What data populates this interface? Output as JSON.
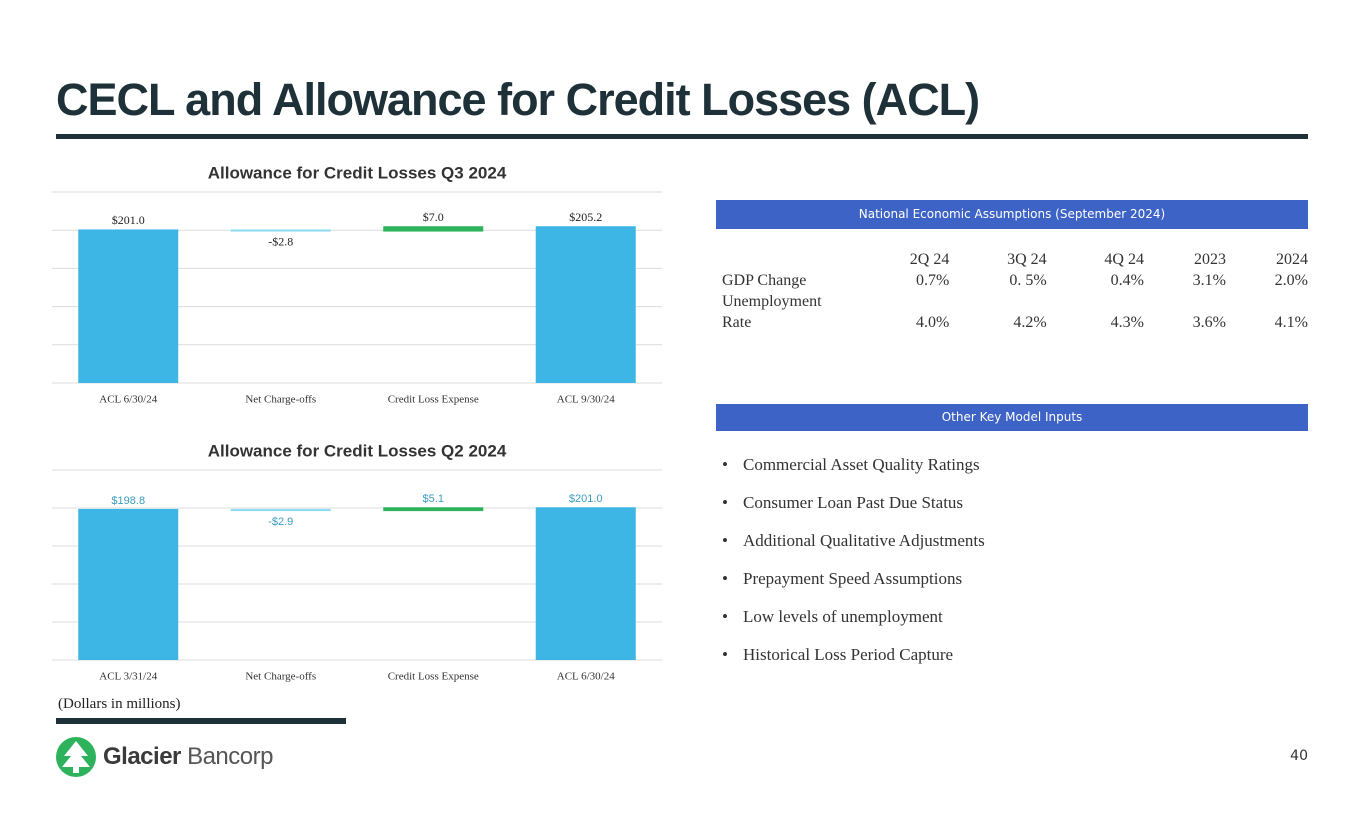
{
  "title": "CECL and Allowance for Credit Losses (ACL)",
  "chart_data": [
    {
      "type": "waterfall",
      "title": "Allowance for Credit Losses Q3 2024",
      "categories": [
        "ACL 6/30/24",
        "Net Charge-offs",
        "Credit Loss Expense",
        "ACL 9/30/24"
      ],
      "values": [
        201.0,
        -2.8,
        7.0,
        205.2
      ],
      "value_labels": [
        "$201.0",
        "-$2.8",
        "$7.0",
        "$205.2"
      ],
      "color": "#3db6e6",
      "increase_color": "#2eb35c",
      "decrease_color": "#8fdcf2",
      "value_label_color": "#222222",
      "ylim": [
        0,
        250
      ],
      "yticks": [
        0,
        50,
        100,
        150,
        200,
        250
      ],
      "grid": true
    },
    {
      "type": "waterfall",
      "title": "Allowance for Credit Losses Q2 2024",
      "categories": [
        "ACL 3/31/24",
        "Net Charge-offs",
        "Credit Loss Expense",
        "ACL 6/30/24"
      ],
      "values": [
        198.8,
        -2.9,
        5.1,
        201.0
      ],
      "value_labels": [
        "$198.8",
        "-$2.9",
        "$5.1",
        "$201.0"
      ],
      "color": "#3db6e6",
      "increase_color": "#2eb35c",
      "decrease_color": "#8fdcf2",
      "value_label_color": "#3a9cbf",
      "ylim": [
        0,
        250
      ],
      "yticks": [
        0,
        50,
        100,
        150,
        200,
        250
      ],
      "grid": true
    }
  ],
  "assumptions": {
    "header": "National Economic Assumptions (September 2024)",
    "columns": [
      "2Q 24",
      "3Q 24",
      "4Q 24",
      "2023",
      "2024"
    ],
    "rows": [
      {
        "label": "GDP Change",
        "values": [
          "0.7%",
          "0. 5%",
          "0.4%",
          "3.1%",
          "2.0%"
        ]
      },
      {
        "label": "Unemployment Rate",
        "values": [
          "4.0%",
          "4.2%",
          "4.3%",
          "3.6%",
          "4.1%"
        ]
      }
    ]
  },
  "inputs": {
    "header": "Other Key Model Inputs",
    "items": [
      "Commercial Asset Quality Ratings",
      "Consumer Loan Past Due Status",
      "Additional Qualitative Adjustments",
      "Prepayment Speed Assumptions",
      "Low levels of unemployment",
      "Historical Loss Period Capture"
    ]
  },
  "footnote": "(Dollars in millions)",
  "logo": {
    "name": "Glacier",
    "suffix": "Bancorp"
  },
  "page_number": "40"
}
